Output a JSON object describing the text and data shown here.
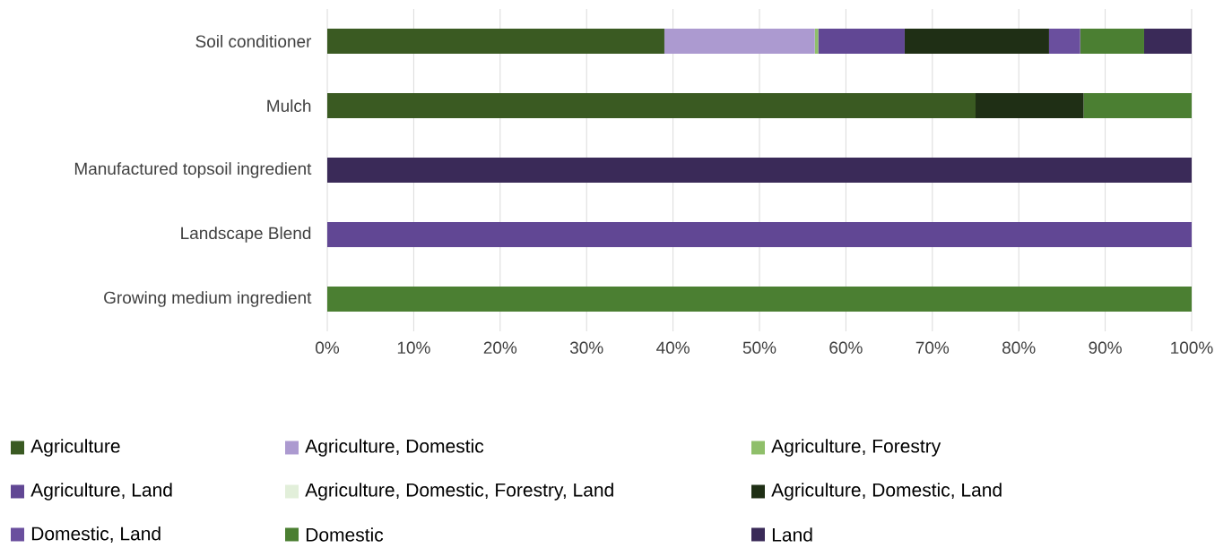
{
  "chart_data": {
    "type": "bar",
    "orientation": "horizontal",
    "stacked": true,
    "categories": [
      "Soil conditioner",
      "Mulch",
      "Manufactured topsoil ingredient",
      "Landscape Blend",
      "Growing medium ingredient"
    ],
    "series": [
      {
        "name": "Agriculture",
        "color": "#3a5a22",
        "values": [
          39,
          75,
          null,
          null,
          null
        ]
      },
      {
        "name": "Agriculture, Domestic",
        "color": "#ac9ad0",
        "values": [
          17.4,
          null,
          null,
          null,
          null
        ]
      },
      {
        "name": "Agriculture, Forestry",
        "color": "#8fbf6a",
        "values": [
          0.4,
          null,
          null,
          null,
          null
        ]
      },
      {
        "name": "Agriculture, Land",
        "color": "#614794",
        "values": [
          10,
          null,
          null,
          100,
          null
        ]
      },
      {
        "name": "Agriculture, Domestic, Forestry, Land",
        "color": "#e2efda",
        "values": [
          null,
          null,
          null,
          null,
          null
        ]
      },
      {
        "name": "Agriculture, Domestic, Land",
        "color": "#1f2f15",
        "values": [
          16.7,
          12.5,
          null,
          null,
          null
        ]
      },
      {
        "name": "Domestic, Land",
        "color": "#6a4f9e",
        "values": [
          3.6,
          null,
          null,
          null,
          null
        ]
      },
      {
        "name": "Domestic",
        "color": "#4b7f32",
        "values": [
          7.4,
          12.5,
          null,
          null,
          100
        ]
      },
      {
        "name": "Land",
        "color": "#3a2a58",
        "values": [
          5.5,
          null,
          100,
          null,
          null
        ]
      }
    ],
    "xlim": [
      0,
      100
    ],
    "xticks": [
      {
        "value": 0,
        "label": "0%"
      },
      {
        "value": 10,
        "label": "10%"
      },
      {
        "value": 20,
        "label": "20%"
      },
      {
        "value": 30,
        "label": "30%"
      },
      {
        "value": 40,
        "label": "40%"
      },
      {
        "value": 50,
        "label": "50%"
      },
      {
        "value": 60,
        "label": "60%"
      },
      {
        "value": 70,
        "label": "70%"
      },
      {
        "value": 80,
        "label": "80%"
      },
      {
        "value": 90,
        "label": "90%"
      },
      {
        "value": 100,
        "label": "100%"
      }
    ],
    "grid": "x",
    "legend": "bottom"
  }
}
